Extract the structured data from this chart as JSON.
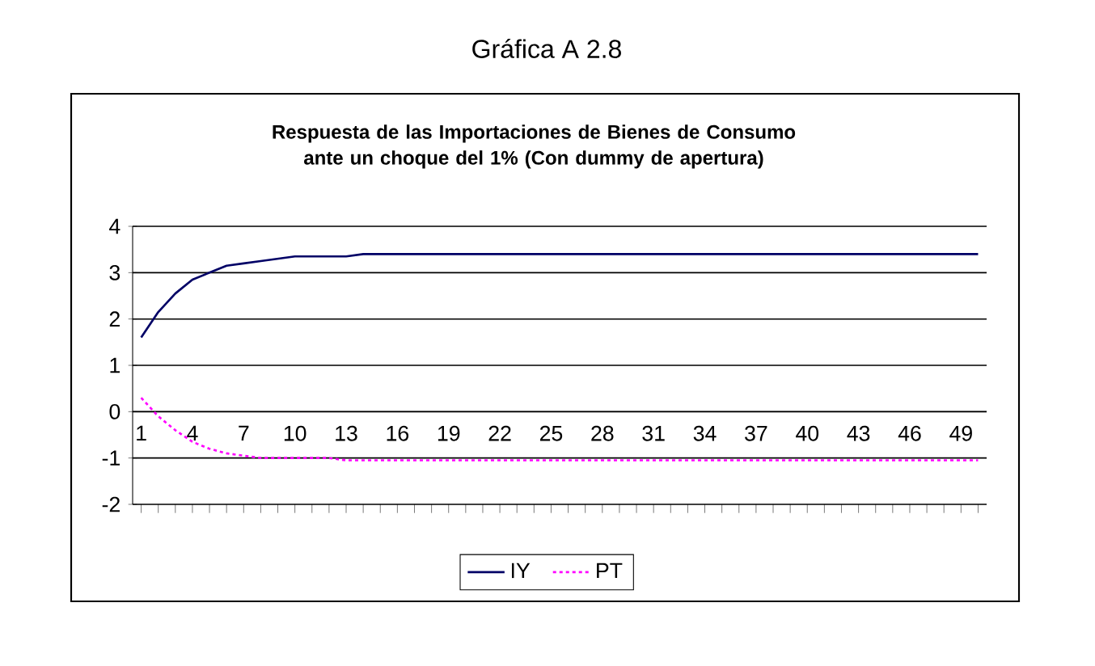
{
  "chart_data": {
    "type": "line",
    "title": "Gráfica A 2.8",
    "subtitle": "Respuesta de las Importaciones de Bienes de Consumo ante un choque del 1% (Con dummy de apertura)",
    "categories": [
      "1",
      null,
      null,
      "4",
      null,
      null,
      "7",
      null,
      null,
      "10",
      null,
      null,
      "13",
      null,
      null,
      "16",
      null,
      null,
      "19",
      null,
      null,
      "22",
      null,
      null,
      "25",
      null,
      null,
      "28",
      null,
      null,
      "31",
      null,
      null,
      "34",
      null,
      null,
      "37",
      null,
      null,
      "40",
      null,
      null,
      "43",
      null,
      null,
      "46",
      null,
      null,
      "49",
      null
    ],
    "series": [
      {
        "name": "IY",
        "color": "#000066",
        "line_style": "solid",
        "values": [
          1.6,
          2.15,
          2.55,
          2.85,
          3.0,
          3.15,
          3.2,
          3.25,
          3.3,
          3.35,
          3.35,
          3.35,
          3.35,
          3.4,
          3.4,
          3.4,
          3.4,
          3.4,
          3.4,
          3.4,
          3.4,
          3.4,
          3.4,
          3.4,
          3.4,
          3.4,
          3.4,
          3.4,
          3.4,
          3.4,
          3.4,
          3.4,
          3.4,
          3.4,
          3.4,
          3.4,
          3.4,
          3.4,
          3.4,
          3.4,
          3.4,
          3.4,
          3.4,
          3.4,
          3.4,
          3.4,
          3.4,
          3.4,
          3.4,
          3.4
        ]
      },
      {
        "name": "PT",
        "color": "#ff00ff",
        "line_style": "dotted",
        "values": [
          0.3,
          -0.1,
          -0.4,
          -0.65,
          -0.8,
          -0.9,
          -0.95,
          -1.0,
          -1.0,
          -1.0,
          -1.0,
          -1.0,
          -1.05,
          -1.05,
          -1.05,
          -1.05,
          -1.05,
          -1.05,
          -1.05,
          -1.05,
          -1.05,
          -1.05,
          -1.05,
          -1.05,
          -1.05,
          -1.05,
          -1.05,
          -1.05,
          -1.05,
          -1.05,
          -1.05,
          -1.05,
          -1.05,
          -1.05,
          -1.05,
          -1.05,
          -1.05,
          -1.05,
          -1.05,
          -1.05,
          -1.05,
          -1.05,
          -1.05,
          -1.05,
          -1.05,
          -1.05,
          -1.05,
          -1.05,
          -1.05,
          -1.05
        ]
      }
    ],
    "ylim": [
      -2,
      4
    ],
    "yticks": [
      -2,
      -1,
      0,
      1,
      2,
      3,
      4
    ],
    "grid": "y",
    "legend": "bottom",
    "marker": "none"
  }
}
